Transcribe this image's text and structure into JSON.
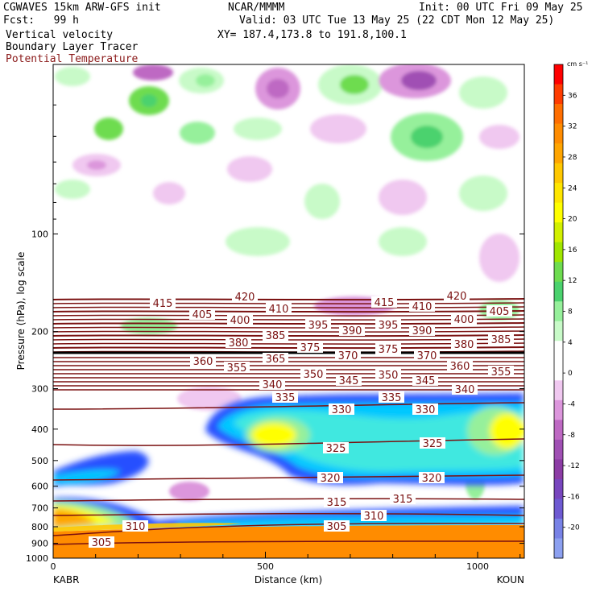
{
  "header": {
    "model": "CGWAVES 15km ARW-GFS init",
    "org": "NCAR/MMMM",
    "init": "Init: 00 UTC Fri 09 May 25",
    "fcst": "Fcst:   99 h",
    "valid": "Valid: 03 UTC Tue 13 May 25 (22 CDT Mon 12 May 25)",
    "field1": "Vertical velocity",
    "xy": "XY= 187.4,173.8 to 191.8,100.1",
    "field2": "Boundary Layer Tracer",
    "field3": "Potential Temperature",
    "field3_color": "#8b1a1a"
  },
  "chart_data": {
    "type": "heatmap",
    "xlabel": "Distance (km)",
    "ylabel": "Pressure (hPa), log scale",
    "xlim": [
      0,
      1110
    ],
    "ylim": [
      1000,
      30
    ],
    "y_scale": "log",
    "x_ticks": [
      0,
      500,
      1000
    ],
    "y_ticks": [
      100,
      200,
      300,
      400,
      500,
      600,
      700,
      800,
      900,
      1000
    ],
    "x_endpoint_labels": [
      "KABR",
      "KOUN"
    ],
    "colorbar": {
      "unit": "cm s⁻¹",
      "tick_labels": [
        36,
        32,
        28,
        24,
        20,
        16,
        12,
        8,
        4,
        0,
        -4,
        -8,
        -12,
        -16,
        -20
      ],
      "colors": [
        "#ff0000",
        "#ff3c00",
        "#ff6e00",
        "#ff8c00",
        "#ffa500",
        "#ffc800",
        "#ffe600",
        "#ffff00",
        "#d2f000",
        "#a0e600",
        "#6edc50",
        "#4bd26e",
        "#96f09b",
        "#c8fac8",
        "#ffffff",
        "#ffffff",
        "#f0c8f0",
        "#dc96dc",
        "#be69c3",
        "#a050b4",
        "#8c3ca5",
        "#7846be",
        "#6e5ad2",
        "#7882e6",
        "#8ca0f0"
      ]
    },
    "theta_contour_labels": [
      305,
      310,
      315,
      320,
      325,
      330,
      335,
      340,
      345,
      350,
      355,
      360,
      365,
      370,
      375,
      380,
      385,
      390,
      395,
      400,
      405,
      410,
      415,
      420
    ],
    "theta_color": "#7a1010",
    "series": [
      {
        "name": "Boundary Layer Tracer",
        "color": "#00c8ff"
      },
      {
        "name": "Potential Temperature",
        "color": "#7a1010"
      }
    ]
  }
}
